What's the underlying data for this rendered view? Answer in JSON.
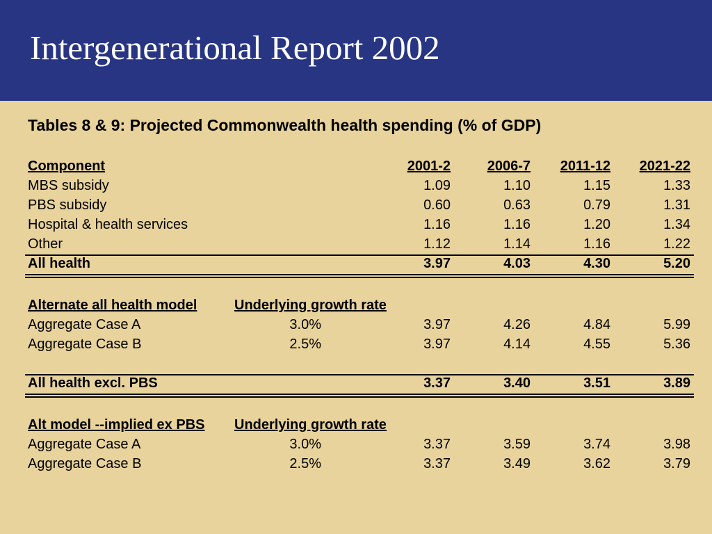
{
  "slide": {
    "title": "Intergenerational Report 2002"
  },
  "table_title": "Tables 8 & 9:  Projected Commonwealth health spending (% of GDP)",
  "years": [
    "2001-2",
    "2006-7",
    "2011-12",
    "2021-22"
  ],
  "component_header": "Component",
  "components": [
    {
      "label": "MBS subsidy",
      "values": [
        "1.09",
        "1.10",
        "1.15",
        "1.33"
      ]
    },
    {
      "label": "PBS subsidy",
      "values": [
        "0.60",
        "0.63",
        "0.79",
        "1.31"
      ]
    },
    {
      "label": "Hospital & health services",
      "values": [
        "1.16",
        "1.16",
        "1.20",
        "1.34"
      ]
    },
    {
      "label": "Other",
      "values": [
        "1.12",
        "1.14",
        "1.16",
        "1.22"
      ]
    }
  ],
  "all_health": {
    "label": "All health",
    "values": [
      "3.97",
      "4.03",
      "4.30",
      "5.20"
    ]
  },
  "alt_model": {
    "header": "Alternate all health model",
    "rate_header": "Underlying growth rate",
    "rows": [
      {
        "label": "Aggregate Case A",
        "rate": "3.0%",
        "values": [
          "3.97",
          "4.26",
          "4.84",
          "5.99"
        ]
      },
      {
        "label": "Aggregate Case B",
        "rate": "2.5%",
        "values": [
          "3.97",
          "4.14",
          "4.55",
          "5.36"
        ]
      }
    ]
  },
  "all_health_excl_pbs": {
    "label": "All health excl. PBS",
    "values": [
      "3.37",
      "3.40",
      "3.51",
      "3.89"
    ]
  },
  "alt_model_ex_pbs": {
    "header": "Alt model --implied ex PBS",
    "rate_header": "Underlying growth rate",
    "rows": [
      {
        "label": "Aggregate Case A",
        "rate": "3.0%",
        "values": [
          "3.37",
          "3.59",
          "3.74",
          "3.98"
        ]
      },
      {
        "label": "Aggregate Case B",
        "rate": "2.5%",
        "values": [
          "3.37",
          "3.49",
          "3.62",
          "3.79"
        ]
      }
    ]
  },
  "colors": {
    "header_bg": "#283583",
    "slide_bg": "#e8d39c"
  }
}
